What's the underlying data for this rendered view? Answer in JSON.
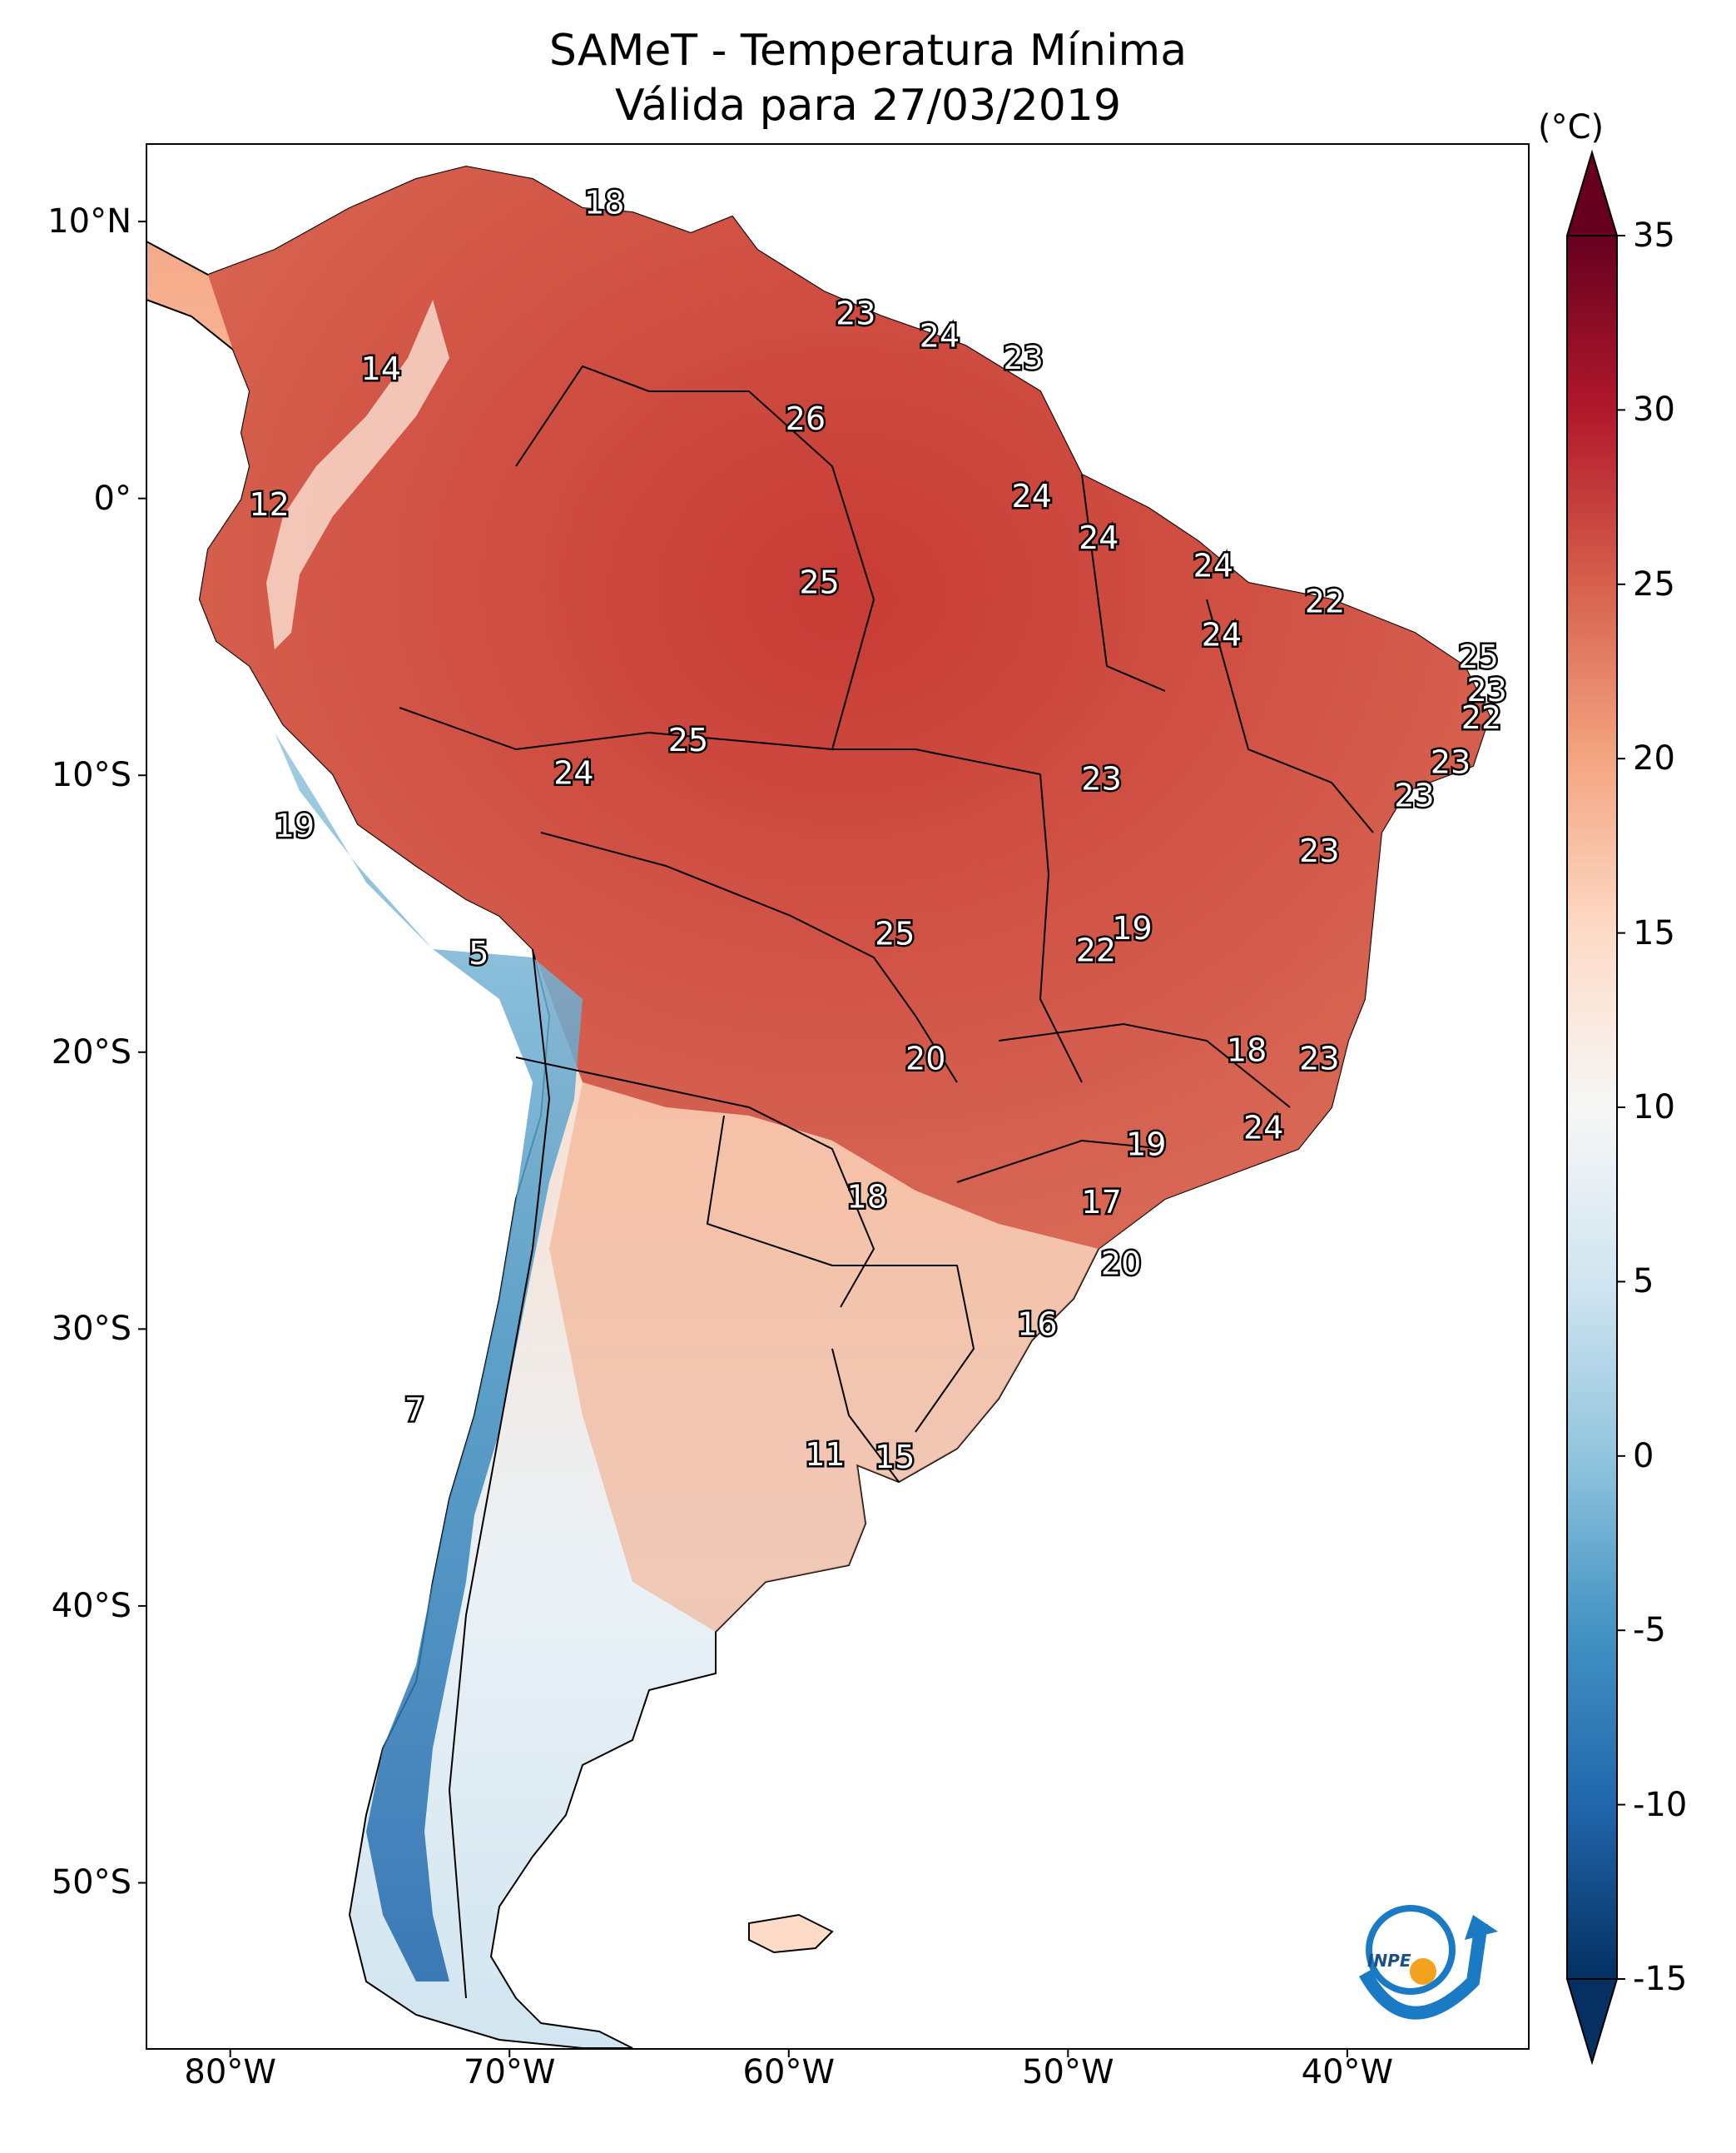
{
  "title": "SAMeT - Temperatura Mínima",
  "subtitle": "Válida para 27/03/2019",
  "colorbar": {
    "unit": "(°C)",
    "ticks": [
      "35",
      "30",
      "25",
      "20",
      "15",
      "10",
      "5",
      "0",
      "-5",
      "-10",
      "-15"
    ],
    "range": [
      -15,
      35
    ],
    "colormap": "RdBu_r",
    "colors": [
      "#053061",
      "#2166ac",
      "#4393c3",
      "#92c5de",
      "#d1e5f0",
      "#f7f7f7",
      "#fddbc7",
      "#f4a582",
      "#d6604d",
      "#b2182b",
      "#67001f"
    ]
  },
  "axes": {
    "lon_ticks": [
      "80°W",
      "70°W",
      "60°W",
      "50°W",
      "40°W"
    ],
    "lat_ticks": [
      "10°N",
      "0°",
      "10°S",
      "20°S",
      "30°S",
      "40°S",
      "50°S"
    ]
  },
  "map": {
    "region": "South America",
    "extent_lon": [
      -83,
      -33.5
    ],
    "extent_lat": [
      -56,
      12.8
    ],
    "temperature_labels": [
      {
        "lon": -66.6,
        "lat": 10.6,
        "value": "18"
      },
      {
        "lon": -57.6,
        "lat": 6.6,
        "value": "23"
      },
      {
        "lon": -54.6,
        "lat": 5.8,
        "value": "24"
      },
      {
        "lon": -51.6,
        "lat": 5.0,
        "value": "23"
      },
      {
        "lon": -74.6,
        "lat": 4.6,
        "value": "14"
      },
      {
        "lon": -59.4,
        "lat": 2.8,
        "value": "26"
      },
      {
        "lon": -78.6,
        "lat": -0.3,
        "value": "12"
      },
      {
        "lon": -51.3,
        "lat": 0.0,
        "value": "24"
      },
      {
        "lon": -48.9,
        "lat": -1.5,
        "value": "24"
      },
      {
        "lon": -44.8,
        "lat": -2.5,
        "value": "24"
      },
      {
        "lon": -58.9,
        "lat": -3.1,
        "value": "25"
      },
      {
        "lon": -40.8,
        "lat": -3.8,
        "value": "22"
      },
      {
        "lon": -44.5,
        "lat": -5.0,
        "value": "24"
      },
      {
        "lon": -35.3,
        "lat": -5.8,
        "value": "25"
      },
      {
        "lon": -35.0,
        "lat": -7.0,
        "value": "23"
      },
      {
        "lon": -35.2,
        "lat": -8.0,
        "value": "22"
      },
      {
        "lon": -63.6,
        "lat": -8.8,
        "value": "25"
      },
      {
        "lon": -36.3,
        "lat": -9.6,
        "value": "23"
      },
      {
        "lon": -67.7,
        "lat": -10.0,
        "value": "24"
      },
      {
        "lon": -48.8,
        "lat": -10.2,
        "value": "23"
      },
      {
        "lon": -37.6,
        "lat": -10.8,
        "value": "23"
      },
      {
        "lon": -77.7,
        "lat": -11.9,
        "value": "19"
      },
      {
        "lon": -41.0,
        "lat": -12.8,
        "value": "23"
      },
      {
        "lon": -47.7,
        "lat": -15.6,
        "value": "19"
      },
      {
        "lon": -56.2,
        "lat": -15.8,
        "value": "25"
      },
      {
        "lon": -49.0,
        "lat": -16.4,
        "value": "22"
      },
      {
        "lon": -71.1,
        "lat": -16.5,
        "value": "5"
      },
      {
        "lon": -43.6,
        "lat": -20.0,
        "value": "18"
      },
      {
        "lon": -41.0,
        "lat": -20.3,
        "value": "23"
      },
      {
        "lon": -55.1,
        "lat": -20.3,
        "value": "20"
      },
      {
        "lon": -43.0,
        "lat": -22.8,
        "value": "24"
      },
      {
        "lon": -47.2,
        "lat": -23.4,
        "value": "19"
      },
      {
        "lon": -48.8,
        "lat": -25.5,
        "value": "17"
      },
      {
        "lon": -57.2,
        "lat": -25.3,
        "value": "18"
      },
      {
        "lon": -48.1,
        "lat": -27.7,
        "value": "20"
      },
      {
        "lon": -51.1,
        "lat": -29.9,
        "value": "16"
      },
      {
        "lon": -73.4,
        "lat": -33.0,
        "value": "7"
      },
      {
        "lon": -58.7,
        "lat": -34.6,
        "value": "11"
      },
      {
        "lon": -56.2,
        "lat": -34.7,
        "value": "15"
      }
    ]
  },
  "logo": {
    "text": "INPE"
  }
}
